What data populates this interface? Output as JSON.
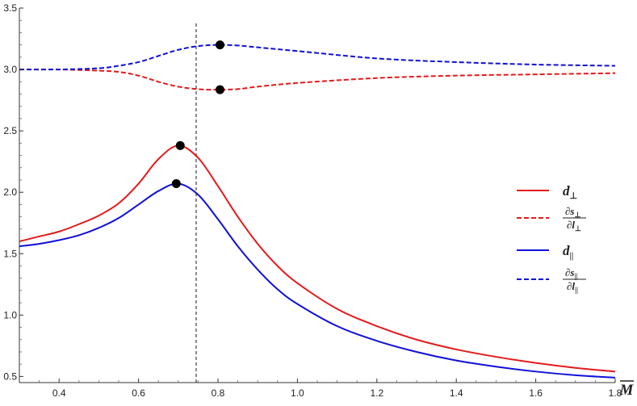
{
  "chart_data": {
    "type": "line",
    "title": "",
    "xlabel": "M",
    "ylabel": "",
    "xlim": [
      0.3,
      1.8
    ],
    "ylim": [
      0.45,
      3.5
    ],
    "xticks": [
      "0.4",
      "0.6",
      "0.8",
      "1.0",
      "1.2",
      "1.4",
      "1.6",
      "1.8"
    ],
    "yticks": [
      "0.5",
      "1.0",
      "1.5",
      "2.0",
      "2.5",
      "3.0",
      "3.5"
    ],
    "vline": 0.745,
    "colors": {
      "red": "#e41a1c",
      "blue": "#1010d8",
      "vline": "#888888",
      "marker": "#000000"
    },
    "series": [
      {
        "name": "d_perp",
        "color": "red",
        "dash": false,
        "x": [
          0.3,
          0.35,
          0.4,
          0.45,
          0.5,
          0.55,
          0.6,
          0.65,
          0.7,
          0.75,
          0.8,
          0.85,
          0.9,
          0.95,
          1.0,
          1.1,
          1.2,
          1.3,
          1.4,
          1.5,
          1.6,
          1.7,
          1.8
        ],
        "values": [
          1.6,
          1.64,
          1.68,
          1.74,
          1.81,
          1.91,
          2.07,
          2.27,
          2.38,
          2.28,
          2.05,
          1.8,
          1.58,
          1.4,
          1.26,
          1.05,
          0.91,
          0.8,
          0.72,
          0.66,
          0.61,
          0.57,
          0.54
        ],
        "peak": [
          0.705,
          2.38
        ]
      },
      {
        "name": "d_par",
        "color": "blue",
        "dash": false,
        "x": [
          0.3,
          0.35,
          0.4,
          0.45,
          0.5,
          0.55,
          0.6,
          0.65,
          0.7,
          0.75,
          0.8,
          0.85,
          0.9,
          0.95,
          1.0,
          1.1,
          1.2,
          1.3,
          1.4,
          1.5,
          1.6,
          1.7,
          1.8
        ],
        "values": [
          1.56,
          1.58,
          1.61,
          1.65,
          1.71,
          1.79,
          1.9,
          2.01,
          2.07,
          1.98,
          1.78,
          1.56,
          1.37,
          1.21,
          1.09,
          0.91,
          0.79,
          0.7,
          0.63,
          0.58,
          0.54,
          0.51,
          0.49
        ],
        "peak": [
          0.695,
          2.07
        ]
      },
      {
        "name": "ds_perp_dl_perp",
        "color": "red",
        "dash": true,
        "x": [
          0.3,
          0.4,
          0.5,
          0.55,
          0.6,
          0.65,
          0.7,
          0.75,
          0.8,
          0.85,
          0.9,
          1.0,
          1.2,
          1.4,
          1.6,
          1.8
        ],
        "values": [
          3.0,
          3.0,
          2.99,
          2.98,
          2.95,
          2.9,
          2.86,
          2.84,
          2.835,
          2.84,
          2.86,
          2.89,
          2.93,
          2.95,
          2.96,
          2.97
        ],
        "peak": [
          0.805,
          2.835
        ]
      },
      {
        "name": "ds_par_dl_par",
        "color": "blue",
        "dash": true,
        "x": [
          0.3,
          0.4,
          0.5,
          0.55,
          0.6,
          0.65,
          0.7,
          0.75,
          0.8,
          0.85,
          0.9,
          1.0,
          1.2,
          1.4,
          1.6,
          1.8
        ],
        "values": [
          3.0,
          3.0,
          3.01,
          3.03,
          3.06,
          3.11,
          3.16,
          3.19,
          3.2,
          3.195,
          3.18,
          3.15,
          3.09,
          3.06,
          3.04,
          3.03
        ],
        "peak": [
          0.805,
          3.2
        ]
      }
    ],
    "legend": {
      "position": "right-middle",
      "items": [
        {
          "series": "d_perp",
          "base": "d",
          "sub": "⊥"
        },
        {
          "series": "ds_perp_dl_perp",
          "num": "∂s",
          "num_sub": "⊥",
          "den": "∂l",
          "den_sub": "⊥"
        },
        {
          "series": "d_par",
          "base": "d",
          "sub": "||"
        },
        {
          "series": "ds_par_dl_par",
          "num": "∂s",
          "num_sub": "||",
          "den": "∂l",
          "den_sub": "||"
        }
      ]
    }
  }
}
